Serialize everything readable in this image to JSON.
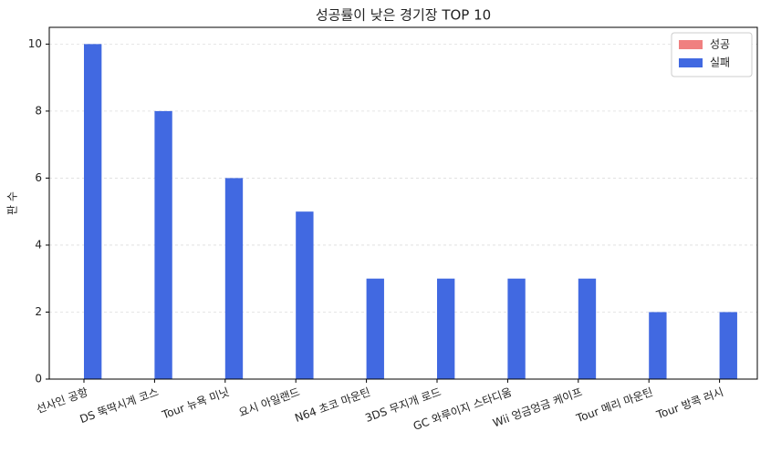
{
  "chart_data": {
    "type": "bar",
    "title": "성공률이 낮은 경기장 TOP 10",
    "y_label": "판 수",
    "categories": [
      "선사인 공항",
      "DS 뚝딱시계 코스",
      "Tour 뉴욕 미닛",
      "요시 아일랜드",
      "N64 초코 마운틴",
      "3DS 무지개 로드",
      "GC 와루이지 스타디움",
      "Wii 엉금엉금 케이프",
      "Tour 메리 마운틴",
      "Tour 방콕 러시"
    ],
    "series": [
      {
        "name": "성공",
        "color": "#f08080",
        "values": [
          0,
          0,
          0,
          0,
          0,
          0,
          0,
          0,
          0,
          0
        ]
      },
      {
        "name": "실패",
        "color": "#4169e1",
        "values": [
          10,
          8,
          6,
          5,
          3,
          3,
          3,
          3,
          2,
          2
        ]
      }
    ],
    "ylim": [
      0,
      10.5
    ],
    "yticks": [
      0,
      2,
      4,
      6,
      8,
      10
    ],
    "grid": true,
    "legend": "upper right"
  }
}
